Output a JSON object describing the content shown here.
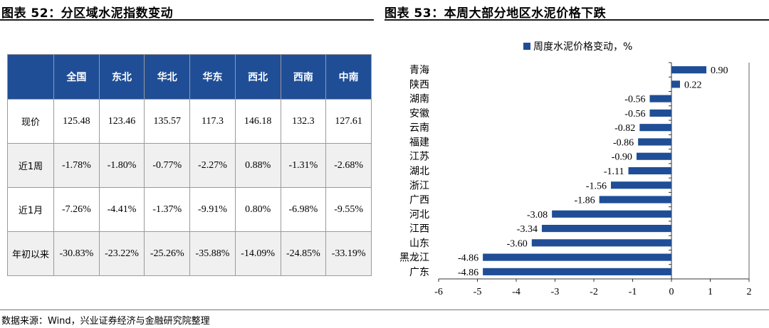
{
  "left_panel": {
    "title": "图表 52：分区域水泥指数变动",
    "table": {
      "headers": [
        "",
        "全国",
        "东北",
        "华北",
        "华东",
        "西北",
        "西南",
        "中南"
      ],
      "rows": [
        {
          "label": "现价",
          "values": [
            "125.48",
            "123.46",
            "135.57",
            "117.3",
            "146.18",
            "132.3",
            "127.61"
          ]
        },
        {
          "label": "近1周",
          "values": [
            "-1.78%",
            "-1.80%",
            "-0.77%",
            "-2.27%",
            "0.88%",
            "-1.31%",
            "-2.68%"
          ]
        },
        {
          "label": "近1月",
          "values": [
            "-7.26%",
            "-4.41%",
            "-1.37%",
            "-9.91%",
            "0.80%",
            "-6.98%",
            "-9.55%"
          ]
        },
        {
          "label": "年初以来",
          "values": [
            "-30.83%",
            "-23.22%",
            "-25.26%",
            "-35.88%",
            "-14.09%",
            "-24.85%",
            "-33.19%"
          ]
        }
      ]
    }
  },
  "right_panel": {
    "title": "图表 53：本周大部分地区水泥价格下跌"
  },
  "chart_data": {
    "type": "bar",
    "orientation": "horizontal",
    "categories": [
      "青海",
      "陕西",
      "湖南",
      "安徽",
      "云南",
      "福建",
      "江苏",
      "湖北",
      "浙江",
      "广西",
      "河北",
      "江西",
      "山东",
      "黑龙江",
      "广东"
    ],
    "series": [
      {
        "name": "周度水泥价格变动，%",
        "values": [
          0.9,
          0.22,
          -0.56,
          -0.56,
          -0.82,
          -0.86,
          -0.9,
          -1.11,
          -1.56,
          -1.86,
          -3.08,
          -3.34,
          -3.6,
          -4.86,
          -4.86
        ],
        "labels": [
          "0.90",
          "0.22",
          "-0.56",
          "-0.56",
          "-0.82",
          "-0.86",
          "-0.90",
          "-1.11",
          "-1.56",
          "-1.86",
          "-3.08",
          "-3.34",
          "-3.60",
          "-4.86",
          "-4.86"
        ]
      }
    ],
    "xlim": [
      -6,
      2
    ],
    "xticks": [
      "-6",
      "-5",
      "-4",
      "-3",
      "-2",
      "-1",
      "0",
      "1",
      "2"
    ],
    "legend": "top-right",
    "grid": false,
    "bar_color": "#1f4e96"
  },
  "source": "数据来源：Wind，兴业证券经济与金融研究院整理"
}
